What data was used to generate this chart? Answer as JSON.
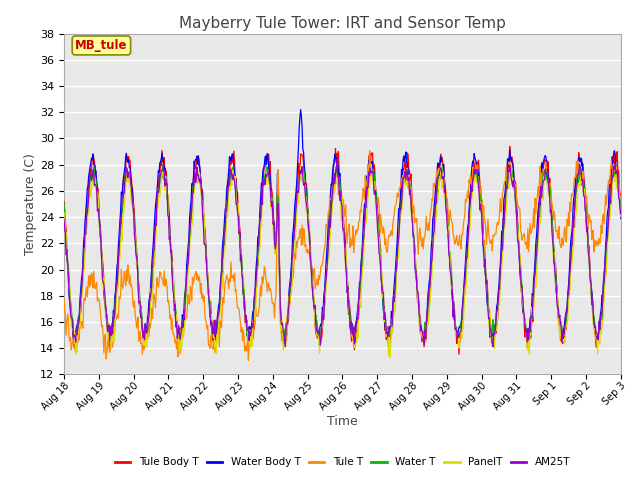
{
  "title": "Mayberry Tule Tower: IRT and Sensor Temp",
  "xlabel": "Time",
  "ylabel": "Temperature (C)",
  "ylim": [
    12,
    38
  ],
  "yticks": [
    12,
    14,
    16,
    18,
    20,
    22,
    24,
    26,
    28,
    30,
    32,
    34,
    36,
    38
  ],
  "annotation_text": "MB_tule",
  "legend_entries": [
    "Tule Body T",
    "Water Body T",
    "Tule T",
    "Water T",
    "PanelT",
    "AM25T"
  ],
  "line_colors": [
    "#ff0000",
    "#0000ff",
    "#ff8800",
    "#00bb00",
    "#dddd00",
    "#9900cc"
  ],
  "background_color": "#e8e8e8",
  "grid_color": "#ffffff",
  "n_days": 16,
  "start_day": 18
}
